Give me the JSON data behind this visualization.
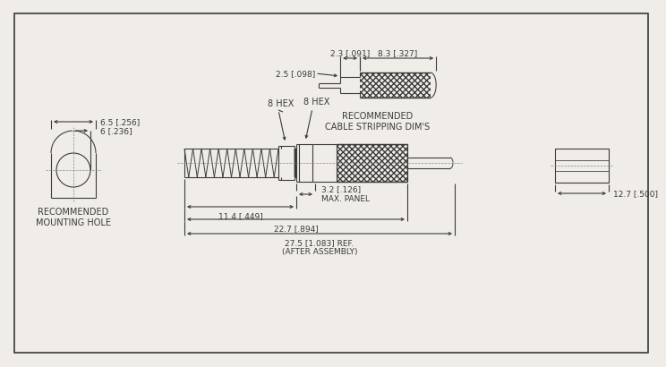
{
  "bg_color": "#f0ede8",
  "line_color": "#3a3a3a",
  "cable_label": "RECOMMENDED\nCABLE STRIPPING DIM'S",
  "mount_label": "RECOMMENDED\nMOUNTING HOLE",
  "dims": {
    "cable_2p5": "2.5 [.098]",
    "cable_2p3": "2.3 [.091]",
    "cable_8p3": "8.3 [.327]",
    "hex1": "8 HEX",
    "hex2": "8 HEX",
    "mount_6p5": "6.5 [.256]",
    "mount_6": "6 [.236]",
    "panel": "3.2 [.126]\nMAX. PANEL",
    "dim_11p4": "11.4 [.449]",
    "dim_22p7": "22.7 [.894]",
    "dim_27p5": "27.5 [1.083] REF.\n(AFTER ASSEMBLY)",
    "dim_12p7": "12.7 [.500]"
  }
}
